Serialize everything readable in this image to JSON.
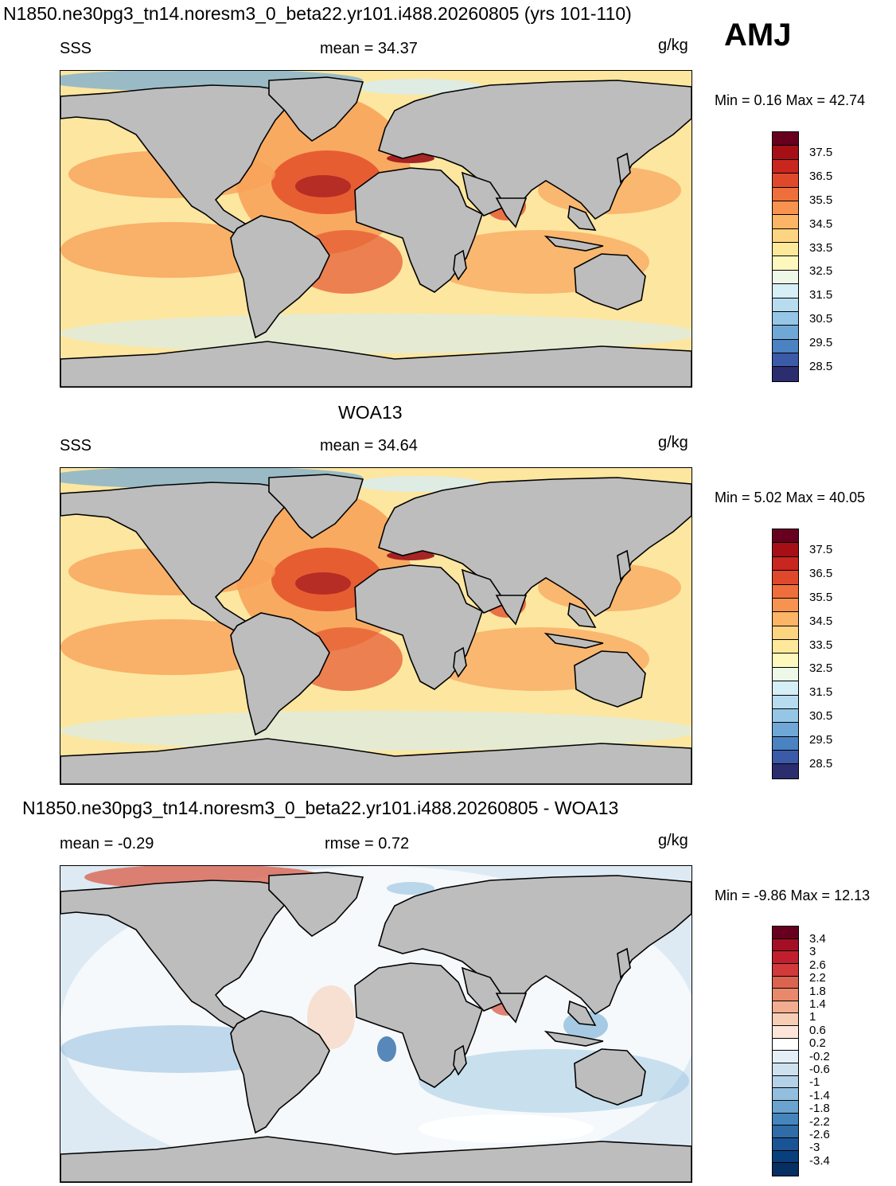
{
  "header": {
    "title": "N1850.ne30pg3_tn14.noresm3_0_beta22.yr101.i488.20260805 (yrs 101-110)",
    "season": "AMJ"
  },
  "panels": [
    {
      "id": "model",
      "title": "",
      "left_label": "SSS",
      "center_label": "mean =  34.37",
      "units": "g/kg",
      "minmax": "Min =    0.16 Max =  42.74"
    },
    {
      "id": "obs",
      "title": "WOA13",
      "left_label": "SSS",
      "center_label": "mean =  34.64",
      "units": "g/kg",
      "minmax": "Min =    5.02 Max =  40.05"
    },
    {
      "id": "diff",
      "title": "N1850.ne30pg3_tn14.noresm3_0_beta22.yr101.i488.20260805 - WOA13",
      "left_label": "mean =  -0.29",
      "center_label": "rmse =   0.72",
      "units": "g/kg",
      "minmax": "Min =  -9.86 Max =  12.13"
    }
  ],
  "colorbars": {
    "salinity": {
      "colors": [
        "#67001f",
        "#a50f15",
        "#c8261f",
        "#e0482c",
        "#ef6f3c",
        "#f8934f",
        "#fcb566",
        "#fdd47f",
        "#fee99b",
        "#fdf8bd",
        "#eef8e8",
        "#d6eef5",
        "#b8dcef",
        "#95c6e5",
        "#6fa8d6",
        "#4a82c2",
        "#3b5aa8",
        "#2c2d6e"
      ],
      "ticks": [
        "37.5",
        "36.5",
        "35.5",
        "34.5",
        "33.5",
        "32.5",
        "31.5",
        "30.5",
        "29.5",
        "28.5"
      ]
    },
    "difference": {
      "colors": [
        "#67001f",
        "#a50f26",
        "#c21f2e",
        "#d2393a",
        "#db6451",
        "#e8896b",
        "#f2ad90",
        "#f8cdb6",
        "#fce6da",
        "#ffffff",
        "#e4eef6",
        "#cde1ef",
        "#b3d2e8",
        "#93bedd",
        "#6aa3cf",
        "#4585bd",
        "#2f6ca8",
        "#1b5494",
        "#083f7c",
        "#062f62"
      ],
      "ticks": [
        "3.4",
        "3",
        "2.6",
        "2.2",
        "1.8",
        "1.4",
        "1",
        "0.6",
        "0.2",
        "-0.2",
        "-0.6",
        "-1",
        "-1.4",
        "-1.8",
        "-2.2",
        "-2.6",
        "-3",
        "-3.4"
      ]
    }
  },
  "map_colors": {
    "land": "#bdbdbd",
    "model": {
      "base": "#fde6a0",
      "warm": "#f8a35a",
      "hot": "#e4542e",
      "hottest": "#a11a1f",
      "cold": "#6fa8d6",
      "coldest": "#2c2d6e",
      "fresh": "#d6eef5"
    },
    "obs": {
      "base": "#fde6a0",
      "warm": "#f8a35a",
      "hot": "#e4542e",
      "hottest": "#a11a1f",
      "cold": "#6fa8d6",
      "coldest": "#2c2d6e",
      "fresh": "#d6eef5"
    },
    "diff": {
      "base": "#ddeaf4",
      "warm": "#f8cdb6",
      "hot": "#db6451",
      "hottest": "#a50f26",
      "cold": "#93bedd",
      "coldest": "#2f6ca8",
      "fresh": "#ffffff"
    }
  }
}
